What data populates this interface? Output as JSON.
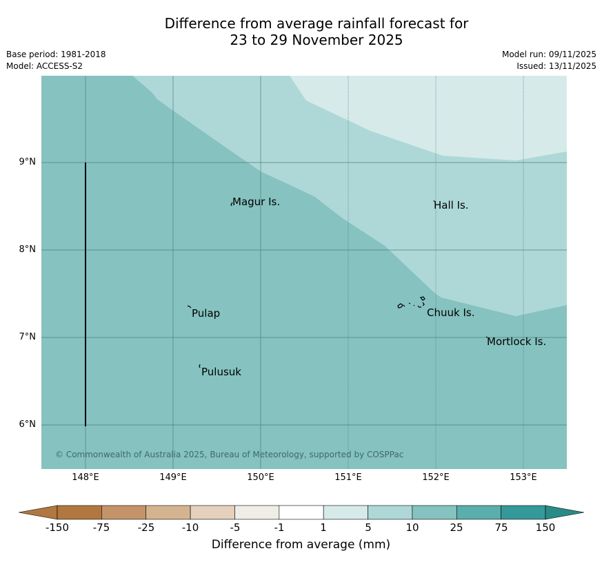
{
  "title": {
    "line1": "Difference from average rainfall forecast for",
    "line2": "23 to 29 November 2025"
  },
  "meta": {
    "base_period": "Base period: 1981-2018",
    "model": "Model: ACCESS-S2",
    "model_run": "Model run: 09/11/2025",
    "issued": "Issued: 13/11/2025"
  },
  "axes": {
    "lat_labels": [
      "9°N",
      "8°N",
      "7°N",
      "6°N"
    ],
    "lon_labels": [
      "148°E",
      "149°E",
      "150°E",
      "151°E",
      "152°E",
      "153°E"
    ]
  },
  "places": [
    {
      "name": "Magur Is."
    },
    {
      "name": "Hall Is."
    },
    {
      "name": "Pulap"
    },
    {
      "name": "Chuuk Is."
    },
    {
      "name": "Mortlock Is."
    },
    {
      "name": "Pulusuk"
    }
  ],
  "copyright": "© Commonwealth of Australia 2025, Bureau of Meteorology, supported by COSPPac",
  "colorbar": {
    "title": "Difference from average (mm)",
    "labels": [
      "-150",
      "-75",
      "-25",
      "-10",
      "-5",
      "-1",
      "1",
      "5",
      "10",
      "25",
      "75",
      "150"
    ],
    "colors": [
      "#b07840",
      "#c49468",
      "#d4b490",
      "#e4d0bc",
      "#f0ede6",
      "#ffffff",
      "#d6eaea",
      "#aed8d7",
      "#85c2c0",
      "#5aaeab",
      "#35999a",
      "#2a8a88"
    ]
  }
}
